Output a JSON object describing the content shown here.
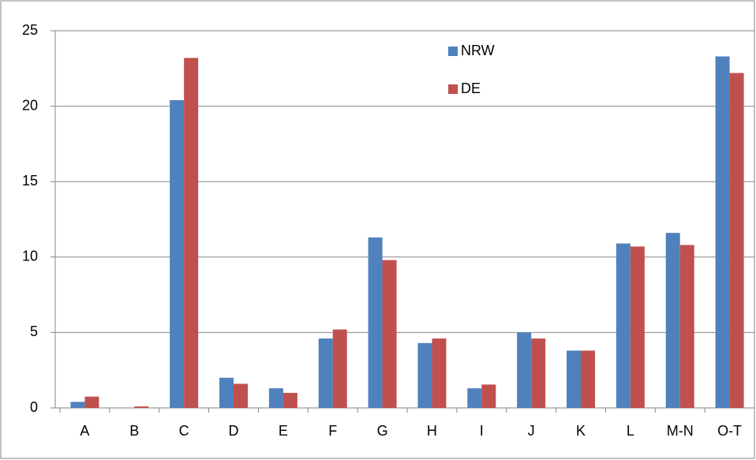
{
  "chart_data": {
    "type": "bar",
    "categories": [
      "A",
      "B",
      "C",
      "D",
      "E",
      "F",
      "G",
      "H",
      "I",
      "J",
      "K",
      "L",
      "M-N",
      "O-T"
    ],
    "series": [
      {
        "name": "NRW",
        "color": "#4f81bd",
        "values": [
          0.4,
          0,
          20.4,
          2.0,
          1.3,
          4.6,
          11.3,
          4.3,
          1.3,
          5.0,
          3.8,
          10.9,
          11.6,
          23.3
        ]
      },
      {
        "name": "DE",
        "color": "#c0504d",
        "values": [
          0.75,
          0.1,
          23.2,
          1.6,
          1.0,
          5.2,
          9.8,
          4.6,
          1.55,
          4.6,
          3.8,
          10.7,
          10.8,
          22.2
        ]
      }
    ],
    "ylim": [
      0,
      25
    ],
    "yticks": [
      0,
      5,
      10,
      15,
      20,
      25
    ],
    "grid": true
  }
}
